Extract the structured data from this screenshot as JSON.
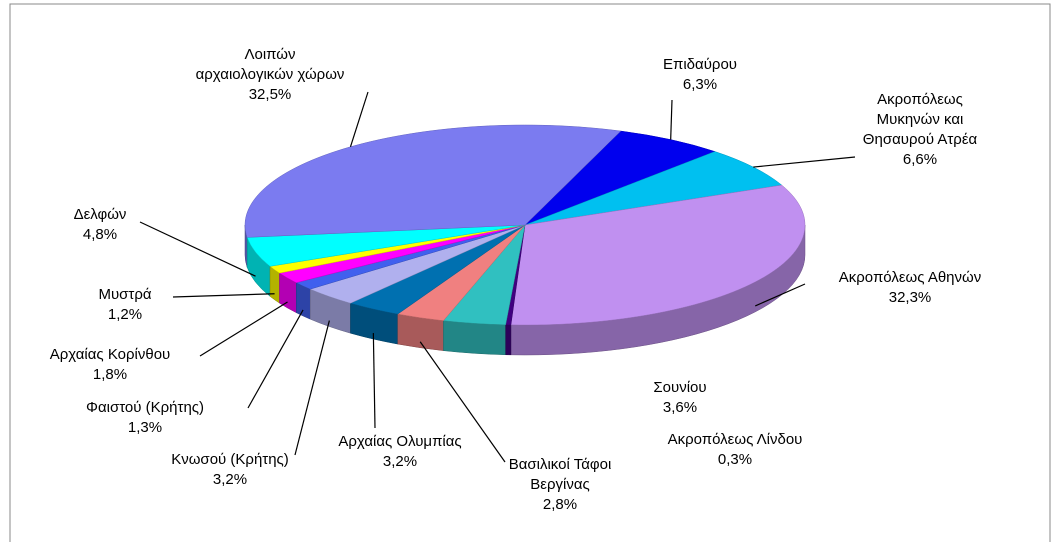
{
  "chart_data": {
    "type": "pie",
    "categories": [
      "Επιδαύρου",
      "Ακροπόλεως\nΜυκηνών και\nΘησαυρού Ατρέα",
      "Ακροπόλεως Αθηνών",
      "Ακροπόλεως Λίνδου",
      "Σουνίου",
      "Βασιλικοί Τάφοι\nΒεργίνας",
      "Αρχαίας Ολυμπίας",
      "Κνωσού (Κρήτης)",
      "Φαιστού (Κρήτης)",
      "Αρχαίας Κορίνθου",
      "Μυστρά",
      "Δελφών",
      "Λοιπών\nαρχαιολογικών χώρων"
    ],
    "values": [
      6.3,
      6.6,
      32.3,
      0.3,
      3.6,
      2.8,
      3.2,
      3.2,
      1.3,
      1.8,
      1.2,
      4.8,
      32.5
    ],
    "value_labels": [
      "6,3%",
      "6,6%",
      "32,3%",
      "0,3%",
      "3,6%",
      "2,8%",
      "3,2%",
      "3,2%",
      "1,3%",
      "1,8%",
      "1,2%",
      "4,8%",
      "32,5%"
    ],
    "colors": [
      "#0000ee",
      "#00c0f0",
      "#c090f0",
      "#400080",
      "#30c0c0",
      "#f08080",
      "#0070b0",
      "#b0b0ee",
      "#4060ee",
      "#ff00ff",
      "#ffff00",
      "#00ffff",
      "#7b7bf0"
    ]
  }
}
